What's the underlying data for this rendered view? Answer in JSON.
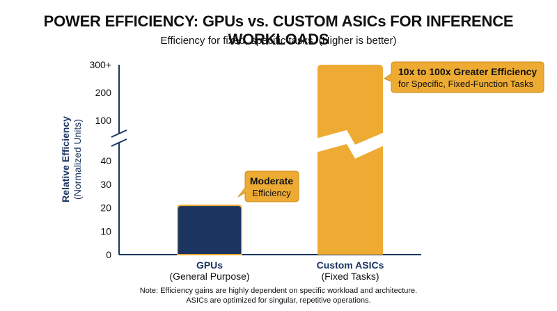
{
  "chart_data": {
    "type": "bar",
    "title": "POWER EFFICIENCY: GPUs vs. CUSTOM ASICs FOR INFERENCE WORKLOADS",
    "subtitle": "Efficiency for fixed, specific tasks. (Higher is better)",
    "ylabel": "Relative Efficiency",
    "ylabel_sub": "(Normalized Units)",
    "y_ticks_lower": [
      "0",
      "10",
      "20",
      "30",
      "40"
    ],
    "y_ticks_upper": [
      "100",
      "200",
      "300+"
    ],
    "axis_break": true,
    "categories": [
      {
        "name": "GPUs",
        "sub": "(General Purpose)"
      },
      {
        "name": "Custom ASICs",
        "sub": "(Fixed Tasks)"
      }
    ],
    "values": [
      21,
      300
    ],
    "bar_colors": [
      "#1b3460",
      "#eeab33"
    ],
    "annotations": [
      {
        "target": "GPUs",
        "bold": "Moderate",
        "text": "Efficiency"
      },
      {
        "target": "Custom ASICs",
        "bold": "10x to 100x Greater Efficiency",
        "text": "for Specific, Fixed-Function Tasks"
      }
    ],
    "note": [
      "Note: Efficiency gains are highly dependent on specific workload and architecture.",
      "ASICs are optimized for singular, repetitive operations."
    ]
  },
  "colors": {
    "axis": "#1b3460",
    "gpu_bar": "#1b3460",
    "asic_bar": "#eeab33",
    "callout_fill": "#eeab33",
    "callout_stroke": "#c98e1a"
  }
}
